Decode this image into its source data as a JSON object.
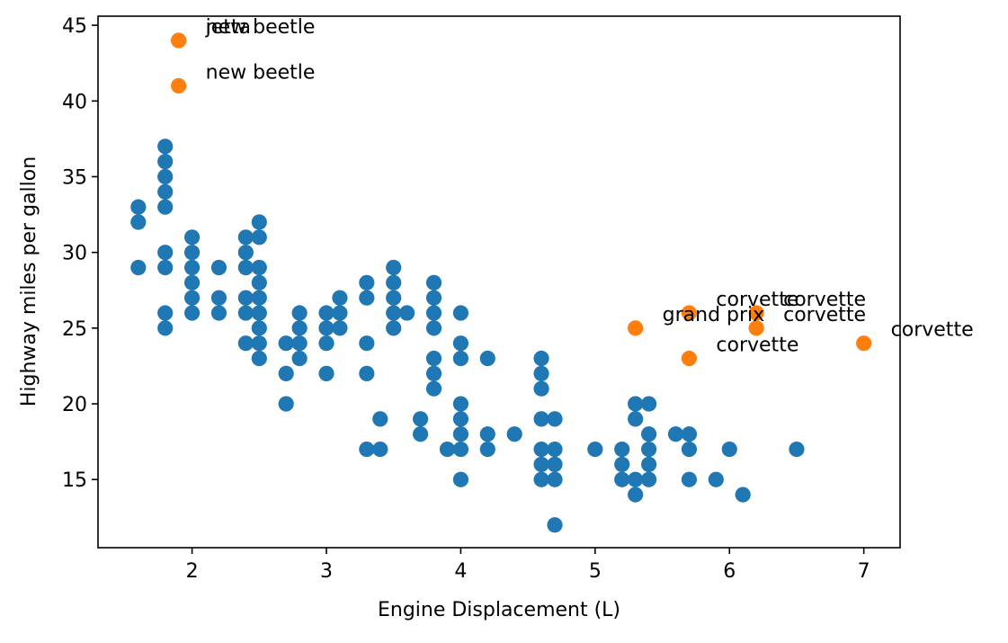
{
  "chart_data": {
    "type": "scatter",
    "title": "",
    "xlabel": "Engine Displacement (L)",
    "ylabel": "Highway miles per gallon",
    "xlim": [
      1.3,
      7.27
    ],
    "ylim": [
      10.5,
      45.6
    ],
    "xticks": [
      2,
      3,
      4,
      5,
      6,
      7
    ],
    "yticks": [
      15,
      20,
      25,
      30,
      35,
      40,
      45
    ],
    "grid": false,
    "colors": {
      "regular": "#1f77b4",
      "outlier": "#ff7f0e"
    },
    "series": [
      {
        "id": "regular",
        "points": [
          [
            1.6,
            33
          ],
          [
            1.6,
            32
          ],
          [
            1.6,
            29
          ],
          [
            1.8,
            37
          ],
          [
            1.8,
            36
          ],
          [
            1.8,
            35
          ],
          [
            1.8,
            34
          ],
          [
            1.8,
            33
          ],
          [
            1.8,
            30
          ],
          [
            1.8,
            29
          ],
          [
            1.8,
            26
          ],
          [
            1.8,
            25
          ],
          [
            2.0,
            31
          ],
          [
            2.0,
            30
          ],
          [
            2.0,
            29
          ],
          [
            2.0,
            28
          ],
          [
            2.0,
            27
          ],
          [
            2.0,
            26
          ],
          [
            2.2,
            29
          ],
          [
            2.2,
            27
          ],
          [
            2.2,
            26
          ],
          [
            2.4,
            31
          ],
          [
            2.4,
            30
          ],
          [
            2.4,
            29
          ],
          [
            2.4,
            27
          ],
          [
            2.4,
            26
          ],
          [
            2.4,
            24
          ],
          [
            2.5,
            32
          ],
          [
            2.5,
            31
          ],
          [
            2.5,
            29
          ],
          [
            2.5,
            28
          ],
          [
            2.5,
            27
          ],
          [
            2.5,
            26
          ],
          [
            2.5,
            25
          ],
          [
            2.5,
            24
          ],
          [
            2.5,
            23
          ],
          [
            2.7,
            24
          ],
          [
            2.7,
            22
          ],
          [
            2.7,
            20
          ],
          [
            2.8,
            26
          ],
          [
            2.8,
            25
          ],
          [
            2.8,
            24
          ],
          [
            2.8,
            23
          ],
          [
            3.0,
            26
          ],
          [
            3.0,
            25
          ],
          [
            3.0,
            24
          ],
          [
            3.0,
            22
          ],
          [
            3.1,
            27
          ],
          [
            3.1,
            26
          ],
          [
            3.1,
            25
          ],
          [
            3.3,
            28
          ],
          [
            3.3,
            27
          ],
          [
            3.3,
            24
          ],
          [
            3.3,
            22
          ],
          [
            3.3,
            17
          ],
          [
            3.4,
            19
          ],
          [
            3.4,
            17
          ],
          [
            3.5,
            29
          ],
          [
            3.5,
            28
          ],
          [
            3.5,
            27
          ],
          [
            3.5,
            26
          ],
          [
            3.5,
            25
          ],
          [
            3.6,
            26
          ],
          [
            3.7,
            19
          ],
          [
            3.7,
            18
          ],
          [
            3.8,
            28
          ],
          [
            3.8,
            27
          ],
          [
            3.8,
            26
          ],
          [
            3.8,
            25
          ],
          [
            3.8,
            23
          ],
          [
            3.8,
            22
          ],
          [
            3.8,
            21
          ],
          [
            3.9,
            17
          ],
          [
            4.0,
            26
          ],
          [
            4.0,
            24
          ],
          [
            4.0,
            23
          ],
          [
            4.0,
            20
          ],
          [
            4.0,
            19
          ],
          [
            4.0,
            18
          ],
          [
            4.0,
            17
          ],
          [
            4.0,
            15
          ],
          [
            4.2,
            23
          ],
          [
            4.2,
            18
          ],
          [
            4.2,
            17
          ],
          [
            4.4,
            18
          ],
          [
            4.6,
            23
          ],
          [
            4.6,
            22
          ],
          [
            4.6,
            21
          ],
          [
            4.6,
            19
          ],
          [
            4.6,
            17
          ],
          [
            4.6,
            16
          ],
          [
            4.6,
            15
          ],
          [
            4.7,
            19
          ],
          [
            4.7,
            17
          ],
          [
            4.7,
            16
          ],
          [
            4.7,
            15
          ],
          [
            4.7,
            12
          ],
          [
            5.0,
            17
          ],
          [
            5.2,
            17
          ],
          [
            5.2,
            16
          ],
          [
            5.2,
            15
          ],
          [
            5.3,
            20
          ],
          [
            5.3,
            19
          ],
          [
            5.3,
            15
          ],
          [
            5.3,
            14
          ],
          [
            5.4,
            20
          ],
          [
            5.4,
            18
          ],
          [
            5.4,
            17
          ],
          [
            5.4,
            16
          ],
          [
            5.4,
            15
          ],
          [
            5.6,
            18
          ],
          [
            5.7,
            18
          ],
          [
            5.7,
            17
          ],
          [
            5.7,
            15
          ],
          [
            5.9,
            15
          ],
          [
            6.0,
            17
          ],
          [
            6.1,
            14
          ],
          [
            6.5,
            17
          ]
        ]
      },
      {
        "id": "outlier",
        "points": [
          {
            "x": 1.9,
            "y": 44,
            "label": "jetta"
          },
          {
            "x": 1.9,
            "y": 44,
            "label": "new beetle"
          },
          {
            "x": 1.9,
            "y": 41,
            "label": "new beetle"
          },
          {
            "x": 5.7,
            "y": 26,
            "label": "corvette"
          },
          {
            "x": 6.2,
            "y": 26,
            "label": "corvette"
          },
          {
            "x": 5.3,
            "y": 25,
            "label": "grand prix"
          },
          {
            "x": 6.2,
            "y": 25,
            "label": "corvette"
          },
          {
            "x": 5.7,
            "y": 23,
            "label": "corvette"
          },
          {
            "x": 7.0,
            "y": 24,
            "label": "corvette"
          }
        ]
      }
    ]
  }
}
